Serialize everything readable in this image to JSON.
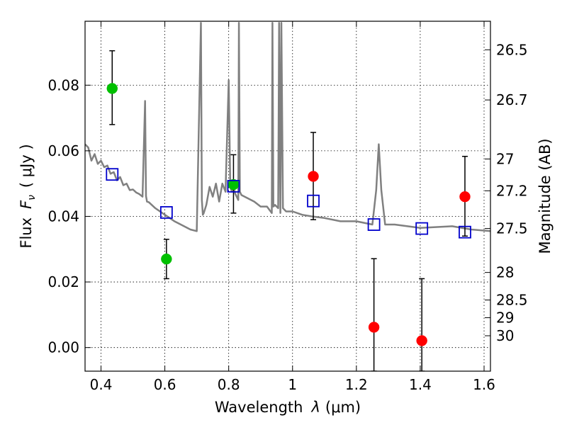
{
  "chart_data": {
    "type": "scatter",
    "xlabel_prefix": "Wavelength",
    "xlabel_symbol": "λ",
    "xlabel_unit": "(μm)",
    "ylabel_prefix": "Flux",
    "ylabel_symbol": "F",
    "ylabel_sub": "ν",
    "ylabel_unit": "( μJy )",
    "y2label": "Magnitude (AB)",
    "xlim": [
      0.35,
      1.62
    ],
    "ylim": [
      -0.0072,
      0.0995
    ],
    "grid": true,
    "x_ticks": [
      {
        "value": 0.4,
        "label": "0.4"
      },
      {
        "value": 0.6,
        "label": "0.6"
      },
      {
        "value": 0.8,
        "label": "0.8"
      },
      {
        "value": 1.0,
        "label": "1"
      },
      {
        "value": 1.2,
        "label": "1.2"
      },
      {
        "value": 1.4,
        "label": "1.4"
      },
      {
        "value": 1.6,
        "label": "1.6"
      }
    ],
    "y_ticks": [
      {
        "value": 0.0,
        "label": "0.00"
      },
      {
        "value": 0.02,
        "label": "0.02"
      },
      {
        "value": 0.04,
        "label": "0.04"
      },
      {
        "value": 0.06,
        "label": "0.06"
      },
      {
        "value": 0.08,
        "label": "0.08"
      }
    ],
    "y2_ticks": [
      {
        "flux": 0.0908,
        "label": "26.5"
      },
      {
        "flux": 0.0755,
        "label": "26.7"
      },
      {
        "flux": 0.0575,
        "label": "27"
      },
      {
        "flux": 0.0478,
        "label": "27.2"
      },
      {
        "flux": 0.0363,
        "label": "27.5"
      },
      {
        "flux": 0.0229,
        "label": "28"
      },
      {
        "flux": 0.0145,
        "label": "28.5"
      },
      {
        "flux": 0.0091,
        "label": "29"
      },
      {
        "flux": 0.0036,
        "label": "30"
      }
    ],
    "colors": {
      "green": "#00c000",
      "red": "#ff0000",
      "model_box": "#0000cc",
      "spectrum": "#808080"
    },
    "series": [
      {
        "marker": "green-circle",
        "points": [
          {
            "x": 0.435,
            "y": 0.079,
            "ylo": 0.068,
            "yhi": 0.0905
          },
          {
            "x": 0.605,
            "y": 0.027,
            "ylo": 0.021,
            "yhi": 0.033
          },
          {
            "x": 0.815,
            "y": 0.0497,
            "ylo": 0.041,
            "yhi": 0.0588
          }
        ]
      },
      {
        "marker": "red-circle",
        "points": [
          {
            "x": 1.065,
            "y": 0.0522,
            "ylo": 0.039,
            "yhi": 0.0656
          },
          {
            "x": 1.255,
            "y": 0.0062,
            "ylo": -0.0072,
            "yhi": 0.0271
          },
          {
            "x": 1.405,
            "y": 0.0021,
            "ylo": -0.0072,
            "yhi": 0.021
          },
          {
            "x": 1.54,
            "y": 0.046,
            "ylo": 0.034,
            "yhi": 0.0583
          }
        ]
      },
      {
        "marker": "blue-square",
        "points": [
          {
            "x": 0.435,
            "y": 0.0528
          },
          {
            "x": 0.605,
            "y": 0.0412
          },
          {
            "x": 0.815,
            "y": 0.0492
          },
          {
            "x": 1.065,
            "y": 0.0447
          },
          {
            "x": 1.255,
            "y": 0.0375
          },
          {
            "x": 1.405,
            "y": 0.0363
          },
          {
            "x": 1.54,
            "y": 0.0352
          }
        ]
      }
    ],
    "spectrum": {
      "x": [
        0.35,
        0.36,
        0.37,
        0.38,
        0.39,
        0.4,
        0.41,
        0.42,
        0.43,
        0.44,
        0.45,
        0.46,
        0.47,
        0.48,
        0.49,
        0.5,
        0.51,
        0.52,
        0.53,
        0.538,
        0.541,
        0.544,
        0.55,
        0.57,
        0.6,
        0.63,
        0.65,
        0.68,
        0.7,
        0.713,
        0.716,
        0.719,
        0.722,
        0.73,
        0.74,
        0.75,
        0.76,
        0.77,
        0.78,
        0.79,
        0.8,
        0.805,
        0.81,
        0.815,
        0.82,
        0.83,
        0.832,
        0.835,
        0.84,
        0.86,
        0.88,
        0.9,
        0.92,
        0.935,
        0.937,
        0.94,
        0.945,
        0.955,
        0.958,
        0.962,
        0.965,
        0.97,
        0.98,
        1.0,
        1.03,
        1.06,
        1.1,
        1.15,
        1.2,
        1.25,
        1.262,
        1.27,
        1.278,
        1.29,
        1.32,
        1.4,
        1.5,
        1.56,
        1.62
      ],
      "y": [
        0.062,
        0.061,
        0.057,
        0.059,
        0.056,
        0.057,
        0.055,
        0.0555,
        0.053,
        0.0535,
        0.051,
        0.052,
        0.0495,
        0.05,
        0.048,
        0.0482,
        0.0473,
        0.0468,
        0.046,
        0.0752,
        0.0462,
        0.0445,
        0.0443,
        0.0425,
        0.0405,
        0.0385,
        0.0375,
        0.036,
        0.0355,
        0.099,
        0.045,
        0.0405,
        0.041,
        0.0435,
        0.049,
        0.046,
        0.05,
        0.0445,
        0.05,
        0.0475,
        0.0815,
        0.049,
        0.0475,
        0.0495,
        0.047,
        0.045,
        0.099,
        0.0475,
        0.0465,
        0.0455,
        0.0445,
        0.043,
        0.043,
        0.041,
        0.099,
        0.043,
        0.0435,
        0.0425,
        0.099,
        0.041,
        0.099,
        0.0425,
        0.0415,
        0.0415,
        0.0405,
        0.04,
        0.0395,
        0.0385,
        0.0385,
        0.0375,
        0.048,
        0.062,
        0.048,
        0.0375,
        0.0375,
        0.0365,
        0.037,
        0.036,
        0.0355
      ]
    }
  }
}
